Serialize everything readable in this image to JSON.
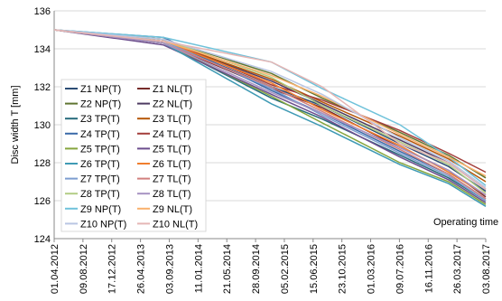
{
  "chart_data": {
    "type": "line",
    "y_label": "Disc width T [mm]",
    "annotation": "Operating time",
    "ylim": [
      124,
      136
    ],
    "yticks": [
      124,
      126,
      128,
      130,
      132,
      134,
      136
    ],
    "grid": true,
    "xlim": [
      "01.04.2012",
      "03.08.2017"
    ],
    "xticks": [
      "01.04.2012",
      "09.08.2012",
      "17.12.2012",
      "26.04.2013",
      "03.09.2013",
      "11.01.2014",
      "21.05.2014",
      "28.09.2014",
      "05.02.2015",
      "15.06.2015",
      "23.10.2015",
      "01.03.2016",
      "09.07.2016",
      "16.11.2016",
      "26.03.2017",
      "03.08.2017"
    ],
    "x": [
      "01.04.2012",
      "08.08.2013",
      "09.12.2014",
      "26.07.2015",
      "11.07.2016",
      "16.02.2017",
      "03.08.2017"
    ],
    "legend": "inside-left",
    "series": [
      {
        "name": "Z1 NP(T)",
        "color": "#2c4d75",
        "values": [
          135,
          134.4,
          132.0,
          131.0,
          129.0,
          127.8,
          126.5
        ]
      },
      {
        "name": "Z1 NL(T)",
        "color": "#772c2a",
        "values": [
          135,
          134.3,
          131.9,
          130.9,
          128.8,
          127.6,
          126.2
        ]
      },
      {
        "name": "Z2 NP(T)",
        "color": "#5f7530",
        "values": [
          135,
          134.5,
          132.7,
          131.4,
          129.6,
          128.4,
          127.2
        ]
      },
      {
        "name": "Z2 NL(T)",
        "color": "#4d3b62",
        "values": [
          135,
          134.4,
          132.3,
          131.1,
          129.2,
          128.0,
          126.6
        ]
      },
      {
        "name": "Z3 TP(T)",
        "color": "#276a7c",
        "values": [
          135,
          134.3,
          131.4,
          130.3,
          128.4,
          127.2,
          126.0
        ]
      },
      {
        "name": "Z3 TL(T)",
        "color": "#b65708",
        "values": [
          135,
          134.4,
          132.4,
          131.2,
          129.4,
          128.2,
          127.0
        ]
      },
      {
        "name": "Z4 TP(T)",
        "color": "#3a6aa8",
        "values": [
          135,
          134.6,
          131.8,
          130.6,
          128.6,
          127.4,
          126.1
        ]
      },
      {
        "name": "Z4 TL(T)",
        "color": "#a33e3b",
        "values": [
          135,
          134.5,
          132.1,
          131.3,
          129.7,
          128.5,
          127.5
        ]
      },
      {
        "name": "Z5 TP(T)",
        "color": "#85a53e",
        "values": [
          135,
          134.3,
          131.5,
          130.1,
          128.0,
          127.0,
          125.8
        ]
      },
      {
        "name": "Z5 TL(T)",
        "color": "#6c4d8d",
        "values": [
          135,
          134.2,
          131.6,
          130.4,
          128.3,
          127.1,
          125.9
        ]
      },
      {
        "name": "Z6 TP(T)",
        "color": "#3f9ab4",
        "values": [
          135,
          134.3,
          131.1,
          129.9,
          127.9,
          126.9,
          125.7
        ]
      },
      {
        "name": "Z6 TL(T)",
        "color": "#f07e2e",
        "values": [
          135,
          134.4,
          132.2,
          130.8,
          128.9,
          127.5,
          126.3
        ]
      },
      {
        "name": "Z7 TP(T)",
        "color": "#7c9ccf",
        "values": [
          135,
          134.4,
          131.9,
          130.5,
          128.5,
          127.3,
          126.0
        ]
      },
      {
        "name": "Z7 TL(T)",
        "color": "#d17f7d",
        "values": [
          135,
          134.3,
          132.0,
          130.7,
          128.7,
          127.4,
          126.1
        ]
      },
      {
        "name": "Z8 TP(T)",
        "color": "#b2cd85",
        "values": [
          135,
          134.5,
          132.5,
          131.0,
          129.1,
          127.9,
          126.4
        ]
      },
      {
        "name": "Z8 TL(T)",
        "color": "#a692c2",
        "values": [
          135,
          134.3,
          131.7,
          130.6,
          128.8,
          127.6,
          126.3
        ]
      },
      {
        "name": "Z9 NP(T)",
        "color": "#6fc2da",
        "values": [
          135,
          134.6,
          133.3,
          131.9,
          130.0,
          128.3,
          126.8
        ]
      },
      {
        "name": "Z9 NL(T)",
        "color": "#f9b06c",
        "values": [
          135,
          134.4,
          132.6,
          131.5,
          129.5,
          128.3,
          127.3
        ]
      },
      {
        "name": "Z10 NP(T)",
        "color": "#b9c6e3",
        "values": [
          135,
          134.5,
          132.8,
          131.6,
          129.3,
          128.1,
          126.7
        ]
      },
      {
        "name": "Z10 NL(T)",
        "color": "#e5b6b5",
        "values": [
          135,
          134.4,
          133.3,
          132.0,
          129.0,
          128.0,
          126.6
        ]
      }
    ]
  }
}
